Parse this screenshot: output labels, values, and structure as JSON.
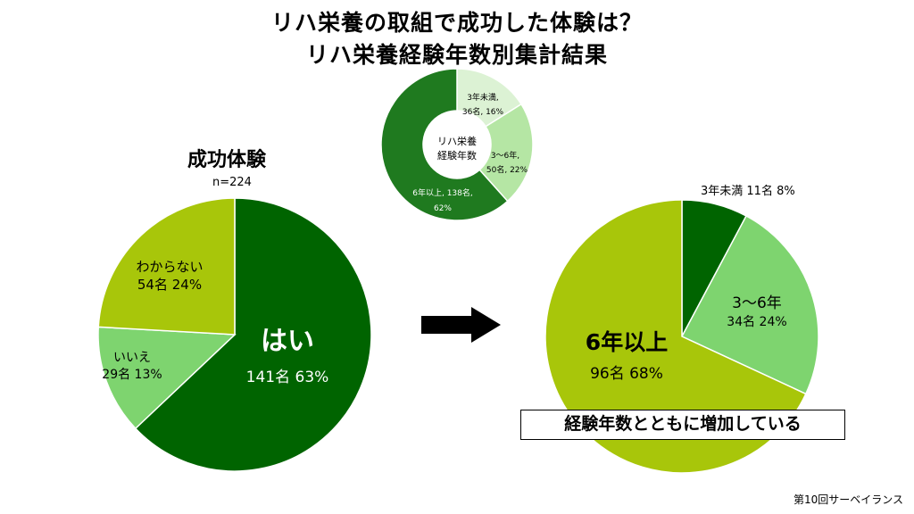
{
  "title_line1": "リハ栄養の取組で成功した体験は？",
  "title_line2": "リハ栄養経験年数別集計結果",
  "left_pie": {
    "heading": "成功体験",
    "n": "n=224"
  },
  "summary": "経験年数とともに増加している",
  "footer": "第10回サーベイランス",
  "colors": {
    "dark_green": "#006400",
    "light_green": "#7ed46f",
    "olive": "#a8c60a",
    "pale_green": "#dcf2d4",
    "mid_green": "#b5e6a4",
    "donut_dark": "#1f7a1f"
  },
  "chart_data": [
    {
      "type": "pie",
      "series": [
        {
          "values": [
            141,
            29,
            54
          ],
          "percents": [
            63,
            13,
            24
          ],
          "categories": [
            "はい",
            "いいえ",
            "わからない"
          ],
          "label_counts": [
            "141名",
            "29名",
            "54名"
          ],
          "label_percents": [
            "63%",
            "13%",
            "24%"
          ]
        }
      ]
    },
    {
      "type": "pie",
      "variant": "donut",
      "center_label": [
        "リハ栄養",
        "経験年数"
      ],
      "series": [
        {
          "values": [
            36,
            50,
            138
          ],
          "percents": [
            16,
            22,
            62
          ],
          "categories": [
            "3年未満,",
            "3～6年,",
            "6年以上, 138名,"
          ],
          "label_second_line": [
            "36名, 16%",
            "50名, 22%",
            "62%"
          ]
        }
      ]
    },
    {
      "type": "pie",
      "series": [
        {
          "values": [
            11,
            34,
            96
          ],
          "percents": [
            8,
            24,
            68
          ],
          "categories": [
            "3年未満",
            "3～6年",
            "6年以上"
          ],
          "label_counts": [
            "11名",
            "34名",
            "96名"
          ],
          "label_percents": [
            "8%",
            "24%",
            "68%"
          ]
        }
      ]
    }
  ]
}
